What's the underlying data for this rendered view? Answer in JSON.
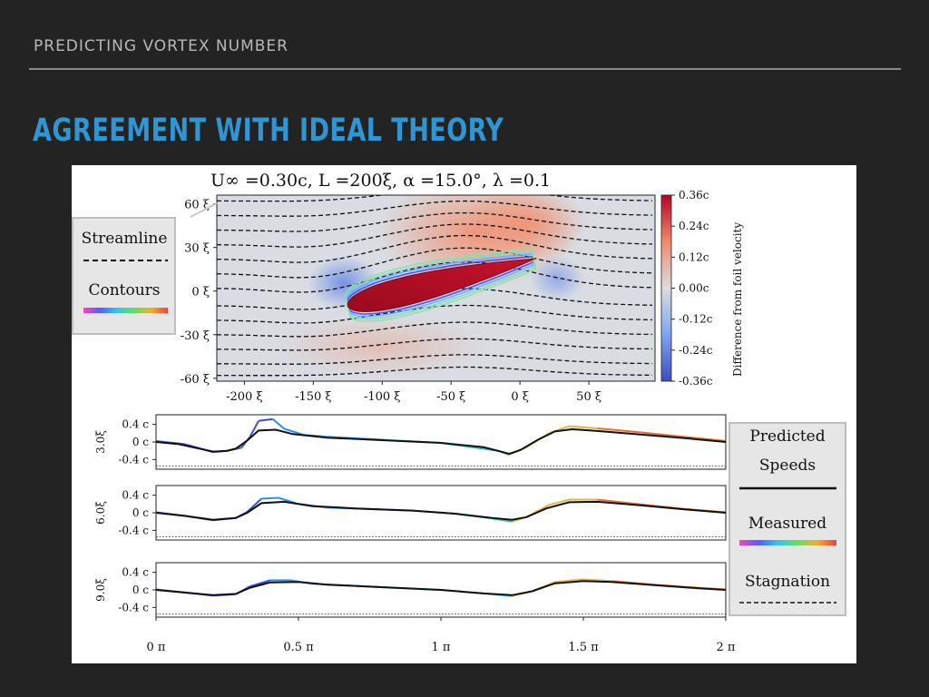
{
  "slide": {
    "kicker": "PREDICTING VORTEX NUMBER",
    "title": "AGREEMENT WITH IDEAL THEORY",
    "accent_color": "#2f95d3",
    "background_color": "#232323"
  },
  "chart_data": [
    {
      "type": "heatmap",
      "title": "U∞ =0.30c,  L =200ξ,  α =15.0°,  λ =0.1",
      "x_ticks": [
        "-200 ξ",
        "-150 ξ",
        "-100 ξ",
        "-50 ξ",
        "0 ξ",
        "50 ξ"
      ],
      "x_tick_values": [
        -200,
        -150,
        -100,
        -50,
        0,
        50
      ],
      "y_ticks": [
        "60 ξ",
        "30 ξ",
        "0 ξ",
        "-30 ξ",
        "-60 ξ"
      ],
      "y_tick_values": [
        60,
        30,
        0,
        -30,
        -60
      ],
      "xlim": [
        -220,
        98
      ],
      "ylim": [
        -62,
        66
      ],
      "colorbar": {
        "label": "Difference from foil velocity",
        "ticks": [
          "0.36c",
          "0.24c",
          "0.12c",
          "0.00c",
          "-0.12c",
          "-0.24c",
          "-0.36c"
        ],
        "tick_values": [
          0.36,
          0.24,
          0.12,
          0.0,
          -0.12,
          -0.24,
          -0.36
        ],
        "colormap": "coolwarm"
      },
      "legend": {
        "placement": "top-left, outside",
        "entries": [
          {
            "label": "Streamline",
            "style": "dashed-black"
          },
          {
            "label": "Contours",
            "style": "rainbow"
          }
        ]
      },
      "streamline_y0": [
        62,
        52,
        42,
        32,
        22,
        12,
        2,
        -10,
        -20,
        -30,
        -40,
        -50,
        -58
      ]
    },
    {
      "type": "line",
      "xlim": [
        0,
        2
      ],
      "x_unit": "π",
      "x_ticks": [
        "0 π",
        "0.5 π",
        "1 π",
        "1.5 π",
        "2 π"
      ],
      "x_tick_values": [
        0,
        0.5,
        1,
        1.5,
        2
      ],
      "y_ticks": [
        "0.4 c",
        "0 c",
        "-0.4 c"
      ],
      "y_tick_values": [
        0.4,
        0,
        -0.4
      ],
      "ylim": [
        -0.62,
        0.62
      ],
      "stagnation_y": -0.55,
      "panels": [
        {
          "label": "3.0ξ",
          "predicted": [
            [
              0,
              0.0
            ],
            [
              0.08,
              -0.05
            ],
            [
              0.2,
              -0.22
            ],
            [
              0.25,
              -0.2
            ],
            [
              0.28,
              -0.15
            ],
            [
              0.32,
              0.03
            ],
            [
              0.36,
              0.26
            ],
            [
              0.42,
              0.28
            ],
            [
              0.48,
              0.18
            ],
            [
              0.6,
              0.1
            ],
            [
              0.8,
              0.04
            ],
            [
              1.0,
              -0.02
            ],
            [
              1.15,
              -0.12
            ],
            [
              1.2,
              -0.2
            ],
            [
              1.24,
              -0.27
            ],
            [
              1.28,
              -0.18
            ],
            [
              1.34,
              0.05
            ],
            [
              1.4,
              0.24
            ],
            [
              1.46,
              0.29
            ],
            [
              1.55,
              0.25
            ],
            [
              1.7,
              0.17
            ],
            [
              1.85,
              0.09
            ],
            [
              2.0,
              0.0
            ]
          ],
          "measured": [
            [
              0,
              0.02
            ],
            [
              0.1,
              -0.05
            ],
            [
              0.2,
              -0.23
            ],
            [
              0.25,
              -0.2
            ],
            [
              0.3,
              -0.13
            ],
            [
              0.33,
              0.12
            ],
            [
              0.36,
              0.48
            ],
            [
              0.41,
              0.52
            ],
            [
              0.45,
              0.3
            ],
            [
              0.52,
              0.16
            ],
            [
              0.6,
              0.12
            ],
            [
              0.8,
              0.05
            ],
            [
              1.0,
              -0.02
            ],
            [
              1.2,
              -0.2
            ],
            [
              1.24,
              -0.29
            ],
            [
              1.3,
              -0.12
            ],
            [
              1.38,
              0.2
            ],
            [
              1.45,
              0.36
            ],
            [
              1.55,
              0.31
            ],
            [
              1.7,
              0.22
            ],
            [
              1.85,
              0.12
            ],
            [
              2.0,
              0.02
            ]
          ]
        },
        {
          "label": "6.0ξ",
          "predicted": [
            [
              0,
              0.0
            ],
            [
              0.1,
              -0.07
            ],
            [
              0.2,
              -0.16
            ],
            [
              0.28,
              -0.12
            ],
            [
              0.32,
              0.0
            ],
            [
              0.37,
              0.22
            ],
            [
              0.45,
              0.25
            ],
            [
              0.55,
              0.15
            ],
            [
              0.7,
              0.1
            ],
            [
              0.9,
              0.05
            ],
            [
              1.05,
              -0.02
            ],
            [
              1.18,
              -0.12
            ],
            [
              1.25,
              -0.16
            ],
            [
              1.3,
              -0.1
            ],
            [
              1.37,
              0.1
            ],
            [
              1.45,
              0.24
            ],
            [
              1.55,
              0.25
            ],
            [
              1.7,
              0.17
            ],
            [
              1.85,
              0.08
            ],
            [
              2.0,
              0.0
            ]
          ],
          "measured": [
            [
              0,
              0.01
            ],
            [
              0.1,
              -0.07
            ],
            [
              0.2,
              -0.17
            ],
            [
              0.28,
              -0.12
            ],
            [
              0.32,
              0.02
            ],
            [
              0.37,
              0.32
            ],
            [
              0.43,
              0.34
            ],
            [
              0.5,
              0.2
            ],
            [
              0.6,
              0.12
            ],
            [
              0.9,
              0.05
            ],
            [
              1.05,
              -0.02
            ],
            [
              1.18,
              -0.13
            ],
            [
              1.25,
              -0.2
            ],
            [
              1.3,
              -0.1
            ],
            [
              1.38,
              0.18
            ],
            [
              1.45,
              0.3
            ],
            [
              1.55,
              0.3
            ],
            [
              1.7,
              0.19
            ],
            [
              1.85,
              0.09
            ],
            [
              2.0,
              0.01
            ]
          ]
        },
        {
          "label": "9.0ξ",
          "predicted": [
            [
              0,
              0.0
            ],
            [
              0.1,
              -0.06
            ],
            [
              0.2,
              -0.12
            ],
            [
              0.28,
              -0.09
            ],
            [
              0.33,
              0.05
            ],
            [
              0.4,
              0.17
            ],
            [
              0.5,
              0.18
            ],
            [
              0.6,
              0.12
            ],
            [
              0.8,
              0.06
            ],
            [
              1.0,
              0.0
            ],
            [
              1.15,
              -0.08
            ],
            [
              1.25,
              -0.12
            ],
            [
              1.32,
              -0.03
            ],
            [
              1.4,
              0.15
            ],
            [
              1.5,
              0.2
            ],
            [
              1.6,
              0.18
            ],
            [
              1.75,
              0.11
            ],
            [
              1.9,
              0.04
            ],
            [
              2.0,
              0.0
            ]
          ],
          "measured": [
            [
              0,
              0.01
            ],
            [
              0.1,
              -0.06
            ],
            [
              0.2,
              -0.13
            ],
            [
              0.28,
              -0.1
            ],
            [
              0.33,
              0.08
            ],
            [
              0.4,
              0.22
            ],
            [
              0.47,
              0.22
            ],
            [
              0.55,
              0.14
            ],
            [
              0.8,
              0.06
            ],
            [
              1.0,
              0.0
            ],
            [
              1.15,
              -0.08
            ],
            [
              1.25,
              -0.14
            ],
            [
              1.32,
              -0.03
            ],
            [
              1.4,
              0.18
            ],
            [
              1.5,
              0.24
            ],
            [
              1.6,
              0.2
            ],
            [
              1.75,
              0.12
            ],
            [
              1.9,
              0.05
            ],
            [
              2.0,
              0.01
            ]
          ]
        }
      ],
      "legend": {
        "placement": "right",
        "entries": [
          {
            "label_lines": [
              "Predicted",
              "Speeds"
            ],
            "style": "solid-black"
          },
          {
            "label_lines": [
              "Measured"
            ],
            "style": "rainbow"
          },
          {
            "label_lines": [
              "Stagnation"
            ],
            "style": "dashed-black"
          }
        ]
      }
    }
  ]
}
